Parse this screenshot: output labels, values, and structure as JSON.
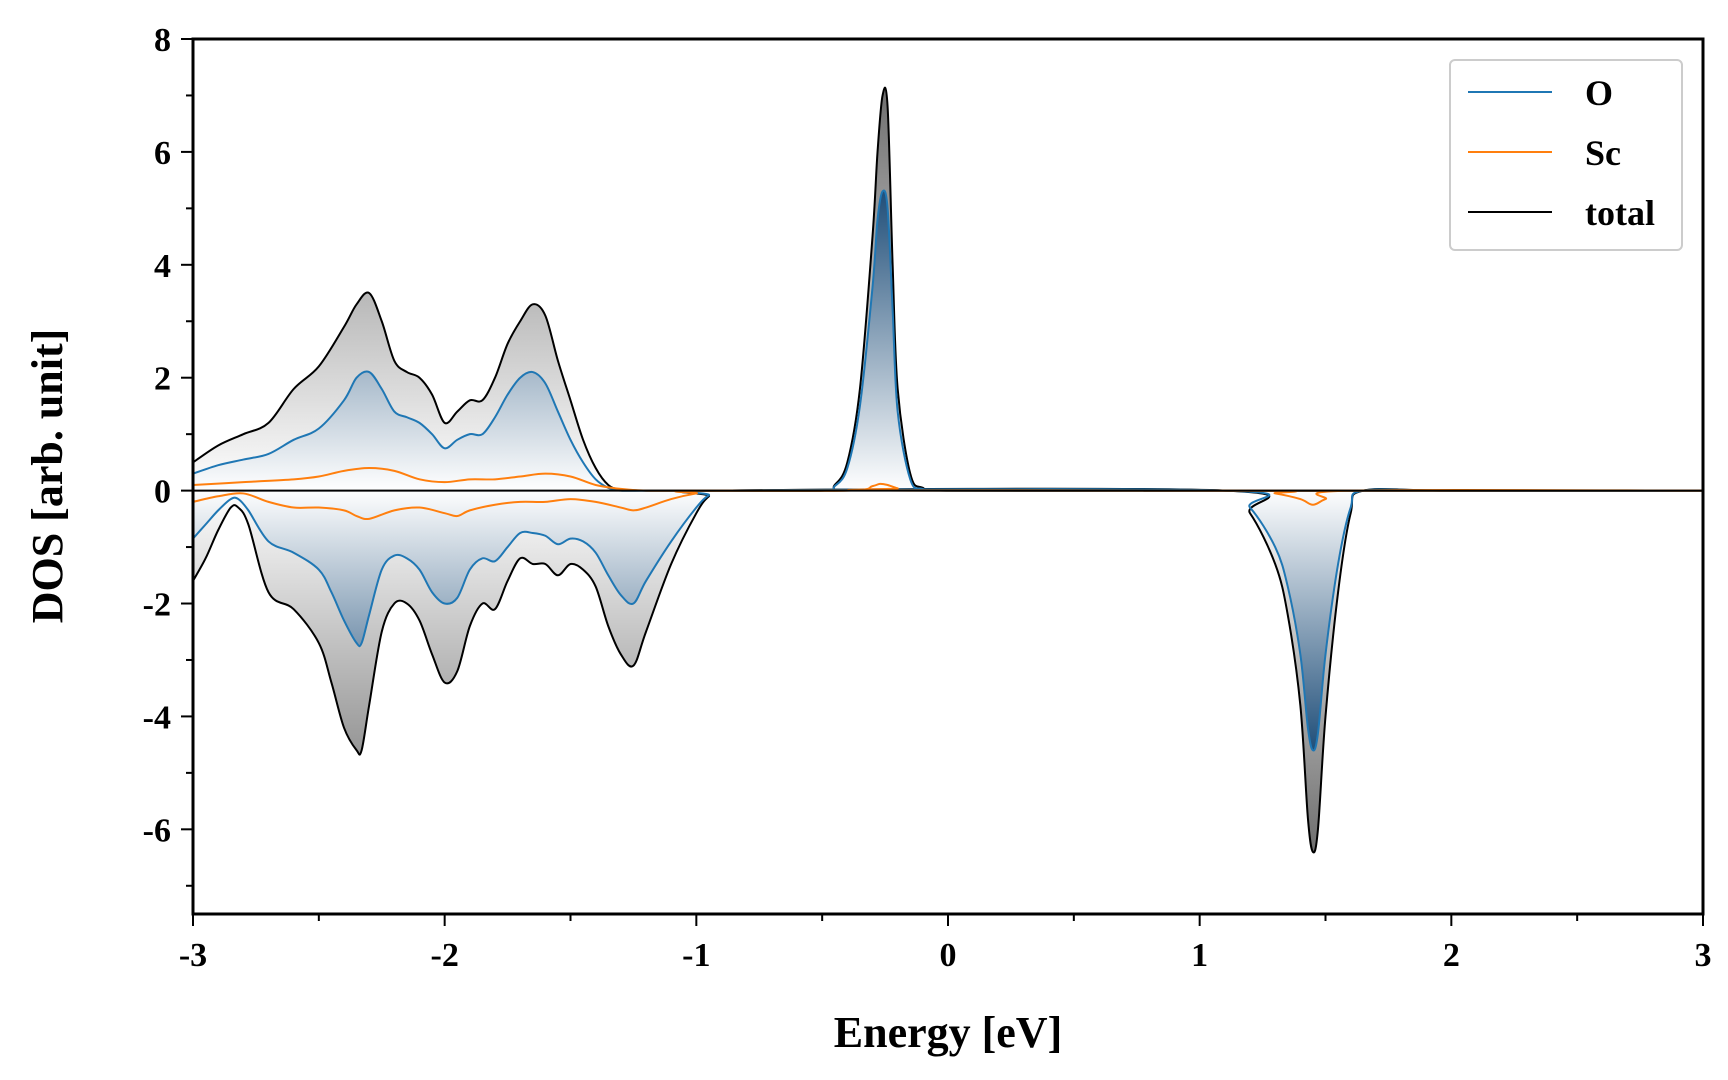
{
  "chart_data": {
    "type": "area",
    "xlabel": "Energy [eV]",
    "ylabel": "DOS [arb. unit]",
    "xlim": [
      -3,
      3
    ],
    "ylim": [
      -7.5,
      8
    ],
    "xticks": [
      -3,
      -2,
      -1,
      0,
      1,
      2,
      3
    ],
    "xtick_labels": [
      "-3",
      "-2",
      "-1",
      "0",
      "1",
      "2",
      "3"
    ],
    "yticks": [
      -6,
      -4,
      -2,
      0,
      2,
      4,
      6,
      8
    ],
    "ytick_labels": [
      "-6",
      "-4",
      "-2",
      "0",
      "2",
      "4",
      "6",
      "8"
    ],
    "grid": false,
    "legend_position": "top-right",
    "legend": [
      "O",
      "Sc",
      "total"
    ],
    "colors": {
      "O": "#1f77b4",
      "Sc": "#ff7f0e",
      "total": "#000000",
      "fill_total": "#808080",
      "fill_O": "#1f4e79"
    },
    "series": [
      {
        "name": "total",
        "spin_up": {
          "x": [
            -3.0,
            -2.9,
            -2.8,
            -2.7,
            -2.6,
            -2.5,
            -2.4,
            -2.35,
            -2.3,
            -2.25,
            -2.2,
            -2.15,
            -2.1,
            -2.05,
            -2.0,
            -1.95,
            -1.9,
            -1.85,
            -1.8,
            -1.75,
            -1.7,
            -1.65,
            -1.6,
            -1.55,
            -1.5,
            -1.45,
            -1.4,
            -1.35,
            -1.3,
            -1.2,
            -1.1,
            -1.0,
            -0.9,
            -0.5,
            -0.45,
            -0.4,
            -0.35,
            -0.3,
            -0.28,
            -0.26,
            -0.24,
            -0.22,
            -0.2,
            -0.15,
            -0.1,
            0.0,
            1.0,
            1.3,
            1.5,
            1.6,
            2.0,
            3.0
          ],
          "y": [
            0.5,
            0.8,
            1.0,
            1.2,
            1.8,
            2.2,
            2.9,
            3.3,
            3.5,
            3.0,
            2.3,
            2.1,
            2.0,
            1.7,
            1.2,
            1.4,
            1.6,
            1.6,
            2.0,
            2.6,
            3.0,
            3.3,
            3.1,
            2.3,
            1.6,
            0.9,
            0.4,
            0.1,
            0.02,
            0.0,
            0.0,
            0.0,
            0.0,
            0.0,
            0.1,
            0.5,
            1.8,
            4.5,
            6.0,
            7.0,
            6.8,
            4.0,
            1.8,
            0.3,
            0.05,
            0.0,
            0.0,
            0.0,
            0.0,
            0.0,
            0.0,
            0.0
          ]
        },
        "spin_down": {
          "x": [
            -3.0,
            -2.95,
            -2.9,
            -2.85,
            -2.82,
            -2.78,
            -2.7,
            -2.6,
            -2.5,
            -2.45,
            -2.4,
            -2.35,
            -2.33,
            -2.3,
            -2.25,
            -2.2,
            -2.15,
            -2.1,
            -2.05,
            -2.0,
            -1.95,
            -1.9,
            -1.85,
            -1.8,
            -1.75,
            -1.7,
            -1.65,
            -1.6,
            -1.55,
            -1.5,
            -1.45,
            -1.4,
            -1.35,
            -1.3,
            -1.25,
            -1.2,
            -1.1,
            -1.0,
            -0.95,
            -0.9,
            1.1,
            1.2,
            1.3,
            1.35,
            1.4,
            1.43,
            1.45,
            1.47,
            1.5,
            1.55,
            1.6,
            1.65,
            2.0,
            3.0
          ],
          "y": [
            -1.6,
            -1.2,
            -0.7,
            -0.3,
            -0.3,
            -0.6,
            -1.8,
            -2.1,
            -2.7,
            -3.4,
            -4.2,
            -4.6,
            -4.6,
            -3.8,
            -2.5,
            -2.0,
            -2.0,
            -2.3,
            -2.9,
            -3.4,
            -3.2,
            -2.4,
            -2.0,
            -2.1,
            -1.6,
            -1.2,
            -1.3,
            -1.3,
            -1.5,
            -1.3,
            -1.4,
            -1.7,
            -2.4,
            -2.9,
            -3.1,
            -2.5,
            -1.3,
            -0.4,
            -0.1,
            0.0,
            0.0,
            -0.4,
            -1.3,
            -2.2,
            -3.8,
            -5.8,
            -6.4,
            -6.0,
            -4.0,
            -1.8,
            -0.4,
            0.0,
            0.0,
            0.0
          ]
        }
      },
      {
        "name": "O",
        "spin_up": {
          "x": [
            -3.0,
            -2.9,
            -2.8,
            -2.7,
            -2.6,
            -2.5,
            -2.4,
            -2.35,
            -2.3,
            -2.25,
            -2.2,
            -2.15,
            -2.1,
            -2.05,
            -2.0,
            -1.95,
            -1.9,
            -1.85,
            -1.8,
            -1.75,
            -1.7,
            -1.65,
            -1.6,
            -1.55,
            -1.5,
            -1.45,
            -1.4,
            -1.35,
            -1.3,
            -1.2,
            -1.0,
            -0.9,
            -0.5,
            -0.45,
            -0.4,
            -0.35,
            -0.3,
            -0.28,
            -0.26,
            -0.24,
            -0.22,
            -0.2,
            -0.15,
            -0.1,
            0.0,
            3.0
          ],
          "y": [
            0.3,
            0.45,
            0.55,
            0.65,
            0.9,
            1.1,
            1.6,
            2.0,
            2.1,
            1.8,
            1.4,
            1.3,
            1.2,
            1.0,
            0.75,
            0.9,
            1.0,
            1.0,
            1.3,
            1.7,
            2.0,
            2.1,
            1.9,
            1.4,
            0.9,
            0.5,
            0.2,
            0.05,
            0.0,
            0.0,
            0.0,
            0.0,
            0.0,
            0.08,
            0.4,
            1.5,
            3.6,
            4.8,
            5.3,
            5.0,
            3.2,
            1.4,
            0.2,
            0.03,
            0.0,
            0.0
          ]
        },
        "spin_down": {
          "x": [
            -3.0,
            -2.95,
            -2.9,
            -2.85,
            -2.82,
            -2.78,
            -2.7,
            -2.6,
            -2.5,
            -2.45,
            -2.4,
            -2.35,
            -2.33,
            -2.3,
            -2.25,
            -2.2,
            -2.15,
            -2.1,
            -2.05,
            -2.0,
            -1.95,
            -1.9,
            -1.85,
            -1.8,
            -1.75,
            -1.7,
            -1.65,
            -1.6,
            -1.55,
            -1.5,
            -1.45,
            -1.4,
            -1.35,
            -1.3,
            -1.25,
            -1.2,
            -1.1,
            -1.0,
            -0.95,
            -0.9,
            1.1,
            1.2,
            1.3,
            1.35,
            1.4,
            1.43,
            1.45,
            1.47,
            1.5,
            1.55,
            1.6,
            1.65,
            2.0,
            3.0
          ],
          "y": [
            -0.85,
            -0.6,
            -0.35,
            -0.15,
            -0.15,
            -0.35,
            -0.9,
            -1.1,
            -1.4,
            -1.8,
            -2.3,
            -2.7,
            -2.7,
            -2.2,
            -1.4,
            -1.15,
            -1.2,
            -1.4,
            -1.8,
            -2.0,
            -1.9,
            -1.4,
            -1.2,
            -1.25,
            -1.0,
            -0.75,
            -0.75,
            -0.8,
            -0.95,
            -0.85,
            -0.9,
            -1.1,
            -1.5,
            -1.85,
            -2.0,
            -1.6,
            -0.9,
            -0.3,
            -0.08,
            0.0,
            0.0,
            -0.3,
            -1.0,
            -1.7,
            -2.9,
            -4.2,
            -4.6,
            -4.3,
            -2.9,
            -1.3,
            -0.3,
            0.0,
            0.0,
            0.0
          ]
        }
      },
      {
        "name": "Sc",
        "spin_up": {
          "x": [
            -3.0,
            -2.8,
            -2.6,
            -2.5,
            -2.4,
            -2.3,
            -2.2,
            -2.1,
            -2.0,
            -1.9,
            -1.8,
            -1.7,
            -1.6,
            -1.5,
            -1.4,
            -1.3,
            -1.2,
            -1.0,
            -0.4,
            -0.3,
            -0.27,
            -0.24,
            -0.2,
            -0.15,
            3.0
          ],
          "y": [
            0.1,
            0.15,
            0.2,
            0.25,
            0.35,
            0.4,
            0.35,
            0.2,
            0.15,
            0.2,
            0.2,
            0.25,
            0.3,
            0.25,
            0.1,
            0.03,
            0.0,
            0.0,
            0.0,
            0.08,
            0.12,
            0.1,
            0.04,
            0.0,
            0.0
          ]
        },
        "spin_down": {
          "x": [
            -3.0,
            -2.9,
            -2.8,
            -2.7,
            -2.6,
            -2.5,
            -2.4,
            -2.35,
            -2.3,
            -2.2,
            -2.1,
            -2.0,
            -1.95,
            -1.9,
            -1.8,
            -1.7,
            -1.6,
            -1.5,
            -1.4,
            -1.3,
            -1.25,
            -1.2,
            -1.1,
            -1.0,
            -0.9,
            1.2,
            1.3,
            1.4,
            1.45,
            1.5,
            1.6,
            3.0
          ],
          "y": [
            -0.2,
            -0.1,
            -0.05,
            -0.2,
            -0.3,
            -0.3,
            -0.35,
            -0.45,
            -0.5,
            -0.35,
            -0.3,
            -0.4,
            -0.45,
            -0.35,
            -0.25,
            -0.2,
            -0.2,
            -0.15,
            -0.2,
            -0.3,
            -0.35,
            -0.3,
            -0.15,
            -0.05,
            0.0,
            0.0,
            -0.05,
            -0.15,
            -0.25,
            -0.15,
            0.0,
            0.0
          ]
        }
      }
    ]
  }
}
